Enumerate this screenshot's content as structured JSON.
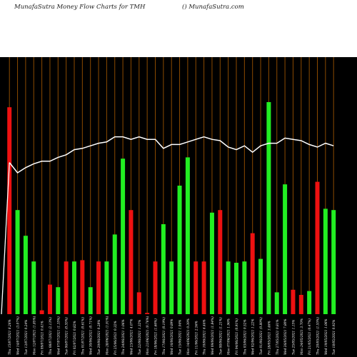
{
  "header": {
    "title_left": "MunafaSutra  Money Flow  Charts for TMH",
    "title_right": "() MunafaSutra.com"
  },
  "colors": {
    "background": "#000000",
    "gridline": "#8B4A00",
    "positive": "#22ee22",
    "negative": "#ee1111",
    "line": "#ffffff"
  },
  "chart_data": {
    "type": "bar",
    "title": "MunafaSutra  Money Flow  Charts for TMH",
    "subtitle": "() MunafaSutra.com",
    "ylim": [
      0,
      100
    ],
    "categories": [
      "Thu 15/07/2021",
      "Wed 14/07/2021",
      "Tue 13/07/2021",
      "Mon 12/07/2021",
      "Fri 09/07/2021",
      "Thu 08/07/2021",
      "Wed 07/07/2021",
      "Tue 06/07/2021",
      "Fri 02/07/2021",
      "Thu 01/07/2021",
      "Wed 30/06/2021",
      "Tue 29/06/2021",
      "Mon 28/06/2021",
      "Fri 25/06/2021",
      "Thu 24/06/2021",
      "Wed 23/06/2021",
      "Tue 22/06/2021",
      "Mon 21/06/2021",
      "Fri 18/06/2021",
      "Thu 17/06/2021",
      "Wed 16/06/2021",
      "Tue 15/06/2021",
      "Mon 14/06/2021",
      "Fri 11/06/2021",
      "Thu 10/06/2021",
      "Wed 09/06/2021",
      "Tue 08/06/2021",
      "Mon 07/06/2021",
      "Fri 04/06/2021",
      "Thu 03/06/2021",
      "Wed 02/06/2021",
      "Tue 01/06/2021",
      "Fri 28/05/2021",
      "Thu 27/05/2021",
      "Wed 26/05/2021",
      "Tue 25/05/2021",
      "Mon 24/05/2021",
      "Fri 21/05/2021",
      "Thu 20/05/2021",
      "Wed 19/05/2021",
      "Tue 18/05/2021"
    ],
    "xtick_labels": [
      "Thu 15/07/2021 8.26%",
      "Wed 14/07/2021 (3.07%)",
      "Tue 13/07/2021 0.24%",
      "Mon 12/07/2021 (1.85%)",
      "Fri 09/07/2021 0.41%",
      "Thu 08/07/2021 (2.13%)",
      "Wed 07/07/2021 (1.35%)",
      "Tue 06/07/2021 (0.55%)",
      "Fri 02/07/2021 0.82%",
      "Thu 01/07/2021 (0.61%)",
      "Wed 30/06/2021 (0.71%)",
      "Tue 29/06/2021 0.28%",
      "Mon 28/06/2021 (1.91%)",
      "Fri 25/06/2021 0.32%",
      "Thu 24/06/2021 1.06%",
      "Wed 23/06/2021 4.07%",
      "Tue 22/06/2021 1.32%",
      "Mon 21/06/2021 (0.76%)",
      "Fri 18/06/2021 (1.66%)",
      "Thu 17/06/2021 (0.19%)",
      "Wed 16/06/2021 0.89%",
      "Tue 15/06/2021 1.04%",
      "Mon 14/06/2021 0.39%",
      "Fri 11/06/2021 2.56%",
      "Thu 10/06/2021 6.44%",
      "Wed 09/06/2021 (1.84%)",
      "Tue 08/06/2021 (1.21%)",
      "Mon 07/06/2021 1.96%",
      "Fri 04/06/2021 (0.91%)",
      "Thu 03/06/2021 0.52%",
      "Wed 02/06/2021 1.22%",
      "Tue 01/06/2021 (0.89%)",
      "Fri 28/05/2021 3.46%",
      "Thu 27/05/2021 0.81%",
      "Wed 26/05/2021 7.80%",
      "Tue 25/05/2021 1.15%",
      "Mon 24/05/2021 3.70%",
      "Fri 21/05/2021 (0.47%)",
      "Thu 20/05/2021 (1.55%)",
      "Wed 19/05/2021 1.06%",
      "Tue 18/05/2021 0.92%"
    ],
    "series": [
      {
        "kind": "bars",
        "values": [
          80.5,
          40.5,
          30.5,
          20.5,
          1.5,
          11.5,
          10.5,
          20.5,
          20.5,
          21.0,
          10.5,
          20.5,
          20.5,
          31.0,
          60.5,
          40.5,
          8.5,
          0.5,
          20.5,
          35.0,
          20.5,
          50.0,
          61.0,
          20.5,
          20.5,
          39.5,
          40.5,
          20.5,
          20.0,
          20.5,
          31.5,
          21.5,
          82.5,
          8.5,
          50.5,
          9.5,
          7.5,
          9.0,
          51.5,
          41.0,
          40.5
        ],
        "signs": [
          "neg",
          "pos",
          "pos",
          "pos",
          "neg",
          "neg",
          "pos",
          "neg",
          "pos",
          "neg",
          "pos",
          "neg",
          "pos",
          "pos",
          "pos",
          "neg",
          "neg",
          "neg",
          "neg",
          "pos",
          "pos",
          "pos",
          "pos",
          "neg",
          "neg",
          "pos",
          "neg",
          "pos",
          "pos",
          "pos",
          "neg",
          "pos",
          "pos",
          "pos",
          "pos",
          "neg",
          "neg",
          "pos",
          "neg",
          "pos",
          "pos"
        ]
      },
      {
        "kind": "line",
        "values": [
          59.0,
          55.0,
          57.0,
          58.5,
          59.5,
          59.5,
          61.0,
          62.0,
          64.0,
          64.5,
          65.5,
          66.5,
          67.0,
          69.0,
          69.0,
          68.0,
          69.0,
          68.0,
          68.0,
          64.5,
          66.0,
          66.0,
          67.0,
          68.0,
          69.0,
          68.0,
          67.5,
          65.0,
          64.0,
          65.5,
          63.0,
          65.5,
          66.5,
          66.5,
          68.5,
          68.0,
          67.5,
          66.0,
          65.0,
          66.5,
          65.5
        ]
      }
    ],
    "grid": true
  }
}
